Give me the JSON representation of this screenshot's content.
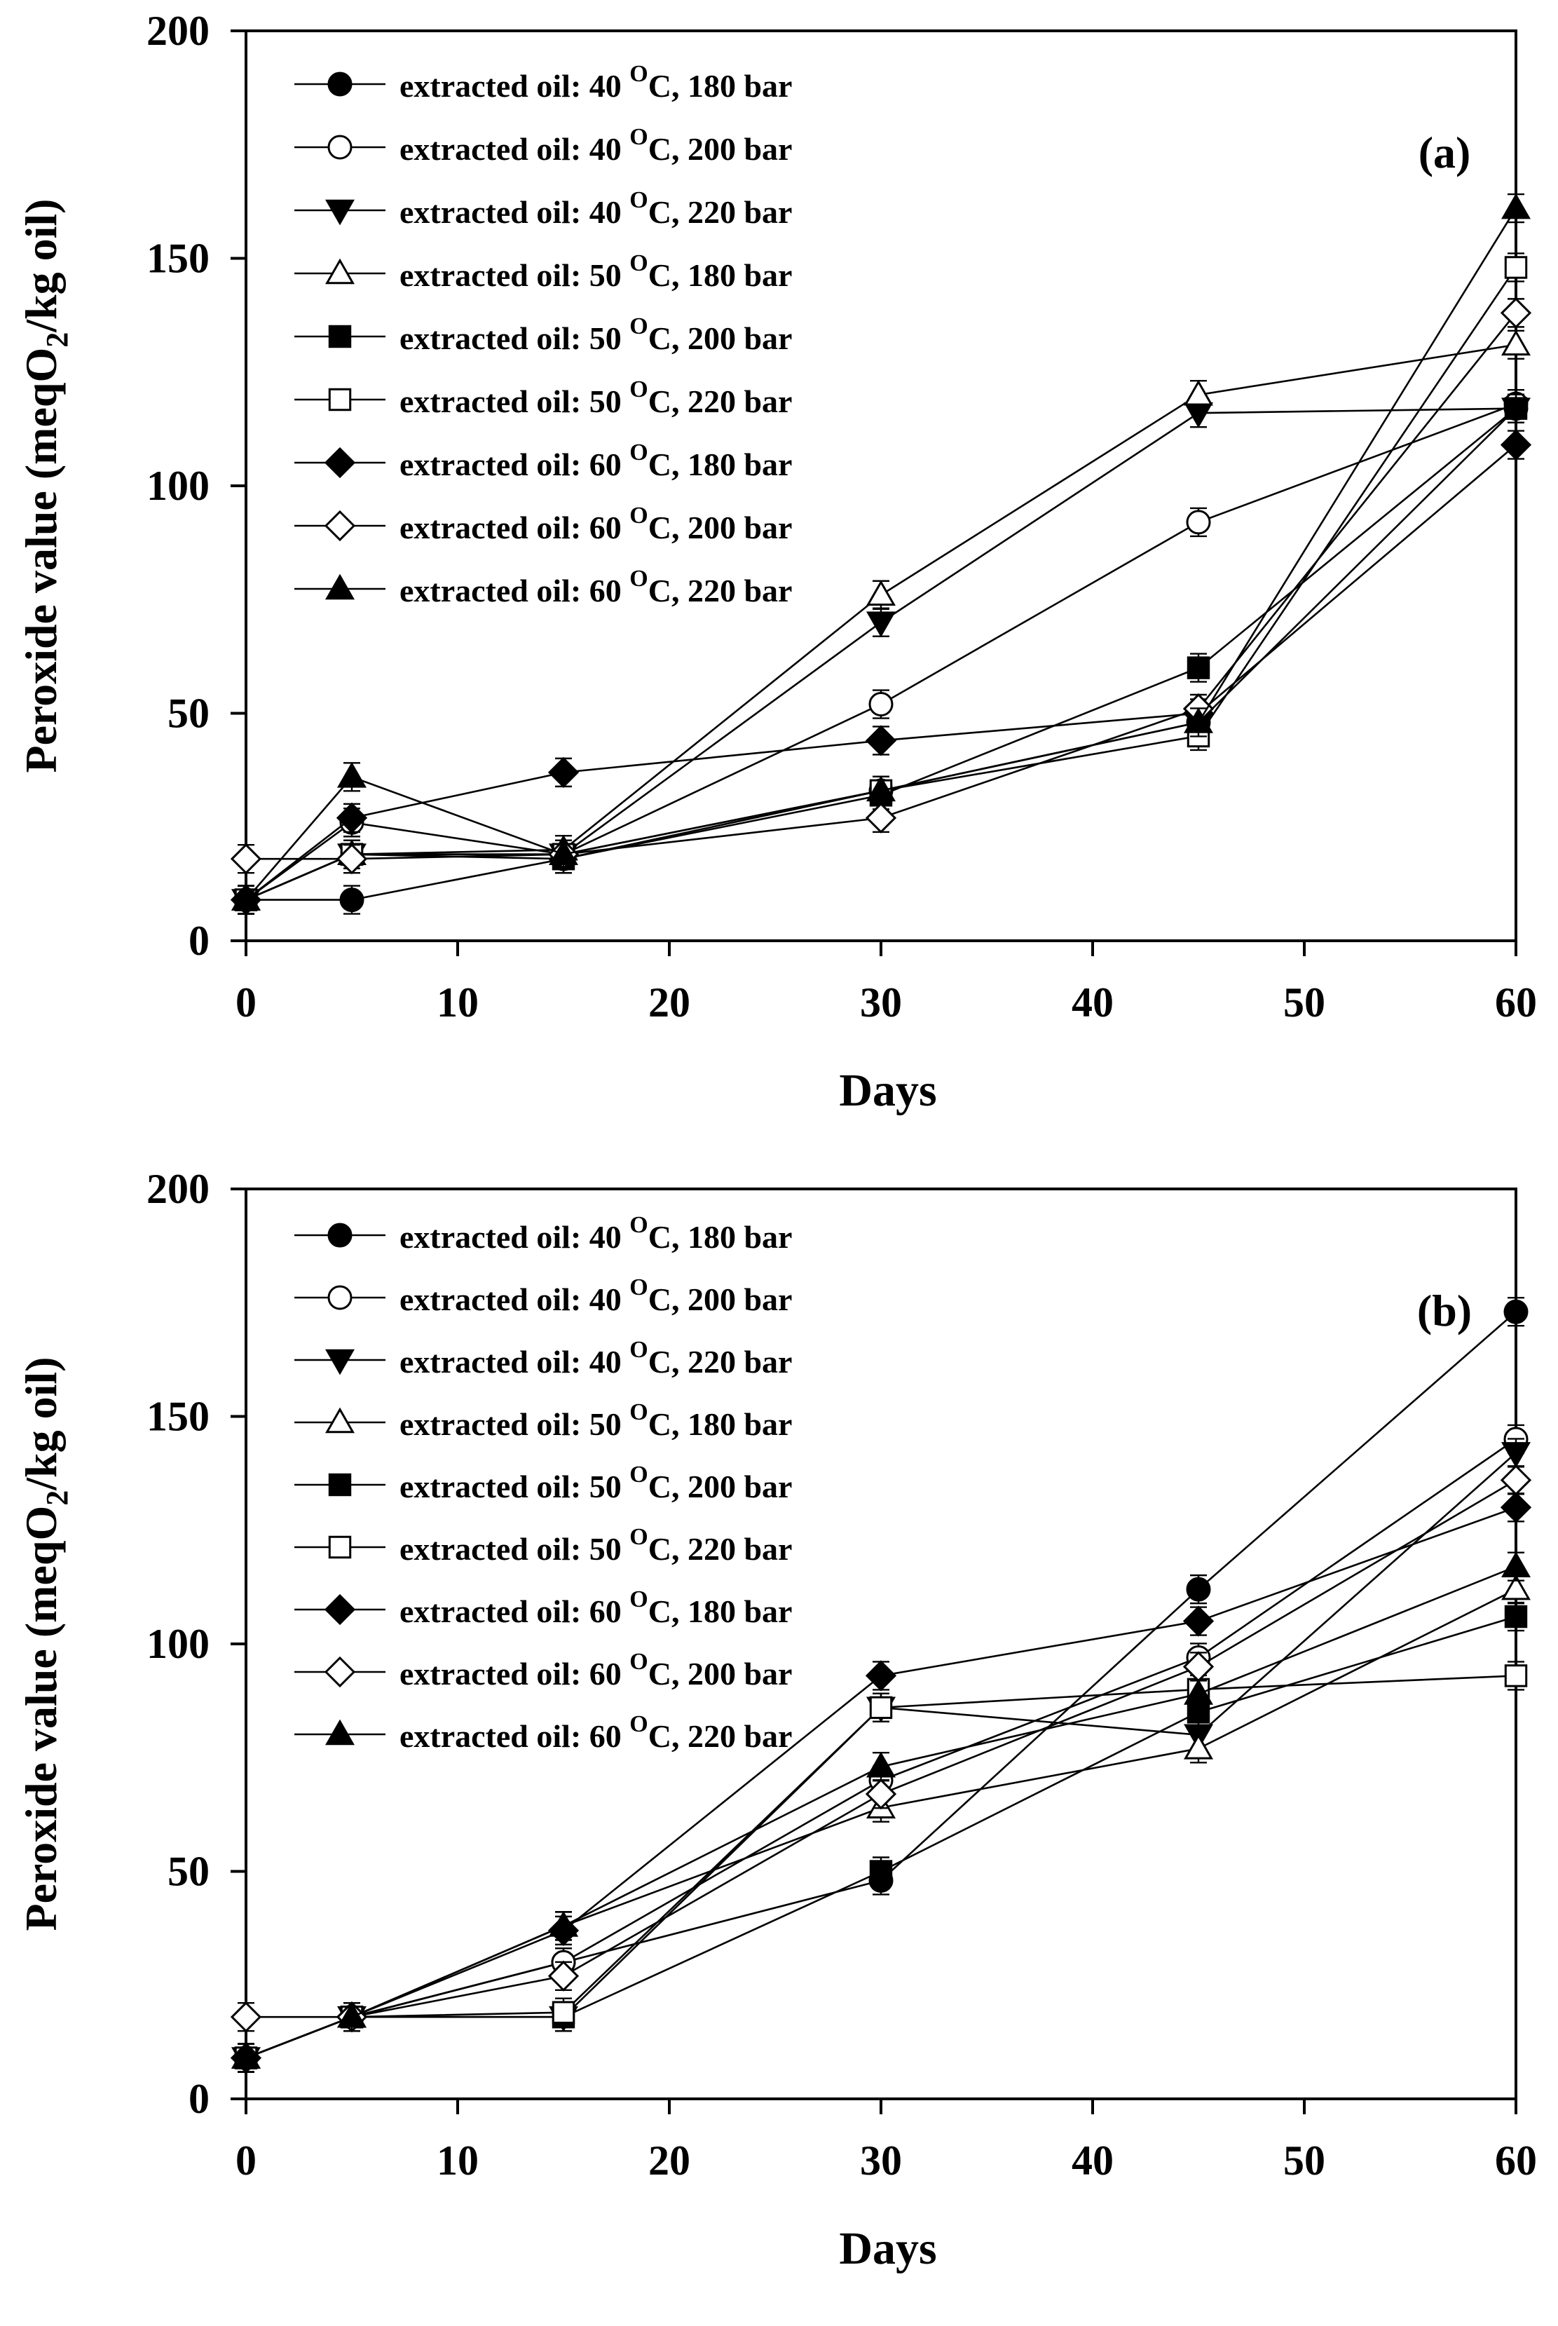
{
  "chart_data": [
    {
      "panel": "(a)",
      "type": "line",
      "xlabel": "Days",
      "ylabel_main": "Peroxide value (meqO",
      "ylabel_sub": "2",
      "ylabel_tail": "/kg oil)",
      "xlim": [
        0,
        60
      ],
      "ylim": [
        0,
        200
      ],
      "xticks": [
        0,
        10,
        20,
        30,
        40,
        50,
        60
      ],
      "yticks": [
        0,
        50,
        100,
        150,
        200
      ],
      "x": [
        0,
        5,
        15,
        30,
        45,
        60
      ],
      "series": [
        {
          "prefix": "extracted oil: 40 ",
          "sup": "O",
          "suffix": "C, 180 bar",
          "marker": "circle",
          "fill": "filled",
          "values": [
            9,
            9,
            18,
            33,
            48,
            117
          ]
        },
        {
          "prefix": "extracted oil: 40 ",
          "sup": "O",
          "suffix": "C, 200 bar",
          "marker": "circle",
          "fill": "open",
          "values": [
            9,
            26,
            19,
            52,
            92,
            118
          ]
        },
        {
          "prefix": "extracted oil: 40 ",
          "sup": "O",
          "suffix": "C, 220 bar",
          "marker": "triangle-down",
          "fill": "filled",
          "values": [
            9,
            19,
            19,
            70,
            116,
            117
          ]
        },
        {
          "prefix": "extracted oil: 50 ",
          "sup": "O",
          "suffix": "C, 180 bar",
          "marker": "triangle-up",
          "fill": "open",
          "values": [
            9,
            19,
            20,
            76,
            120,
            131
          ]
        },
        {
          "prefix": "extracted oil: 50 ",
          "sup": "O",
          "suffix": "C, 200 bar",
          "marker": "square",
          "fill": "filled",
          "values": [
            9,
            19,
            18,
            32,
            60,
            117
          ]
        },
        {
          "prefix": "extracted oil: 50 ",
          "sup": "O",
          "suffix": "C, 220 bar",
          "marker": "square",
          "fill": "open",
          "values": [
            9,
            19,
            19,
            33,
            45,
            148
          ]
        },
        {
          "prefix": "extracted oil: 60 ",
          "sup": "O",
          "suffix": "C, 180 bar",
          "marker": "diamond",
          "fill": "filled",
          "values": [
            9,
            27,
            37,
            44,
            50,
            109
          ]
        },
        {
          "prefix": "extracted oil: 60 ",
          "sup": "O",
          "suffix": "C, 200 bar",
          "marker": "diamond",
          "fill": "open",
          "values": [
            18,
            18,
            19,
            27,
            51,
            138
          ]
        },
        {
          "prefix": "extracted oil: 60 ",
          "sup": "O",
          "suffix": "C, 220 bar",
          "marker": "triangle-up",
          "fill": "filled",
          "values": [
            9,
            36,
            19,
            33,
            48,
            161
          ]
        }
      ]
    },
    {
      "panel": "(b)",
      "type": "line",
      "xlabel": "Days",
      "ylabel_main": "Peroxide value (meqO",
      "ylabel_sub": "2",
      "ylabel_tail": "/kg oil)",
      "xlim": [
        0,
        60
      ],
      "ylim": [
        0,
        200
      ],
      "xticks": [
        0,
        10,
        20,
        30,
        40,
        50,
        60
      ],
      "yticks": [
        0,
        50,
        100,
        150,
        200
      ],
      "x": [
        0,
        5,
        15,
        30,
        45,
        60
      ],
      "series": [
        {
          "prefix": "extracted oil: 40 ",
          "sup": "O",
          "suffix": "C, 180 bar",
          "marker": "circle",
          "fill": "filled",
          "values": [
            9,
            18,
            30,
            48,
            112,
            173
          ]
        },
        {
          "prefix": "extracted oil: 40 ",
          "sup": "O",
          "suffix": "C, 200 bar",
          "marker": "circle",
          "fill": "open",
          "values": [
            9,
            18,
            30,
            70,
            97,
            145
          ]
        },
        {
          "prefix": "extracted oil: 40 ",
          "sup": "O",
          "suffix": "C, 220 bar",
          "marker": "triangle-down",
          "fill": "filled",
          "values": [
            9,
            18,
            18,
            86,
            80,
            142
          ]
        },
        {
          "prefix": "extracted oil: 50 ",
          "sup": "O",
          "suffix": "C, 180 bar",
          "marker": "triangle-up",
          "fill": "open",
          "values": [
            9,
            18,
            38,
            64,
            77,
            112
          ]
        },
        {
          "prefix": "extracted oil: 50 ",
          "sup": "O",
          "suffix": "C, 200 bar",
          "marker": "square",
          "fill": "filled",
          "values": [
            9,
            18,
            18,
            50,
            85,
            106
          ]
        },
        {
          "prefix": "extracted oil: 50 ",
          "sup": "O",
          "suffix": "C, 220 bar",
          "marker": "square",
          "fill": "open",
          "values": [
            9,
            18,
            19,
            86,
            90,
            93
          ]
        },
        {
          "prefix": "extracted oil: 60 ",
          "sup": "O",
          "suffix": "C, 180 bar",
          "marker": "diamond",
          "fill": "filled",
          "values": [
            9,
            18,
            37,
            93,
            105,
            130
          ]
        },
        {
          "prefix": "extracted oil: 60 ",
          "sup": "O",
          "suffix": "C, 200 bar",
          "marker": "diamond",
          "fill": "open",
          "values": [
            18,
            18,
            27,
            67,
            95,
            136
          ]
        },
        {
          "prefix": "extracted oil: 60 ",
          "sup": "O",
          "suffix": "C, 220 bar",
          "marker": "triangle-up",
          "fill": "filled",
          "values": [
            9,
            18,
            38,
            73,
            89,
            117
          ]
        }
      ]
    }
  ]
}
